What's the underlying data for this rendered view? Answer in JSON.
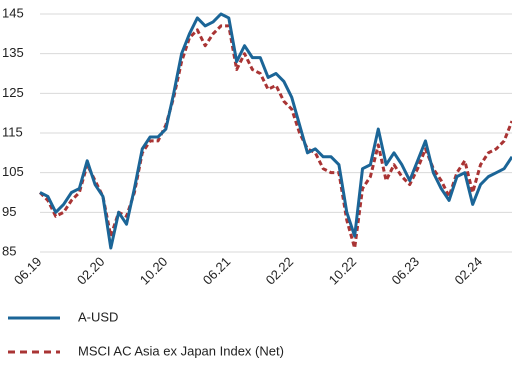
{
  "chart_data": {
    "type": "line",
    "categories": [
      "06.19",
      null,
      null,
      null,
      null,
      null,
      null,
      null,
      "02.20",
      null,
      null,
      null,
      null,
      null,
      null,
      null,
      "10.20",
      null,
      null,
      null,
      null,
      null,
      null,
      null,
      "06.21",
      null,
      null,
      null,
      null,
      null,
      null,
      null,
      "02.22",
      null,
      null,
      null,
      null,
      null,
      null,
      null,
      "10.22",
      null,
      null,
      null,
      null,
      null,
      null,
      null,
      "06.23",
      null,
      null,
      null,
      null,
      null,
      null,
      null,
      "02.24",
      null,
      null,
      null,
      null
    ],
    "series": [
      {
        "name": "A-USD",
        "color": "#1b6597",
        "dash": false,
        "values": [
          100,
          99,
          95,
          97,
          100,
          101,
          108,
          102,
          99,
          86,
          95,
          92,
          101,
          111,
          114,
          114,
          116,
          125,
          135,
          140,
          144,
          142,
          143,
          145,
          144,
          133,
          137,
          134,
          134,
          129,
          130,
          128,
          124,
          117,
          110,
          111,
          109,
          109,
          107,
          95,
          89,
          106,
          107,
          116,
          107,
          110,
          107,
          103,
          108,
          113,
          105,
          101,
          98,
          104,
          105,
          97,
          102,
          104,
          105,
          106,
          109
        ]
      },
      {
        "name": "MSCI AC Asia ex Japan Index (Net)",
        "color": "#a93434",
        "dash": true,
        "values": [
          100,
          98,
          94,
          95,
          98,
          100,
          107,
          103,
          99,
          89,
          95,
          94,
          100,
          110,
          113,
          113,
          117,
          124,
          133,
          139,
          141,
          137,
          140,
          142,
          142,
          131,
          135,
          131,
          130,
          126,
          127,
          123,
          121,
          115,
          111,
          110,
          106,
          105,
          105,
          93,
          86,
          101,
          104,
          112,
          103,
          107,
          104,
          102,
          106,
          111,
          106,
          103,
          99,
          105,
          108,
          100,
          107,
          110,
          111,
          113,
          118
        ]
      }
    ],
    "ylim": [
      85,
      145
    ],
    "yticks": [
      85,
      95,
      105,
      115,
      125,
      135,
      145
    ],
    "grid": true
  }
}
